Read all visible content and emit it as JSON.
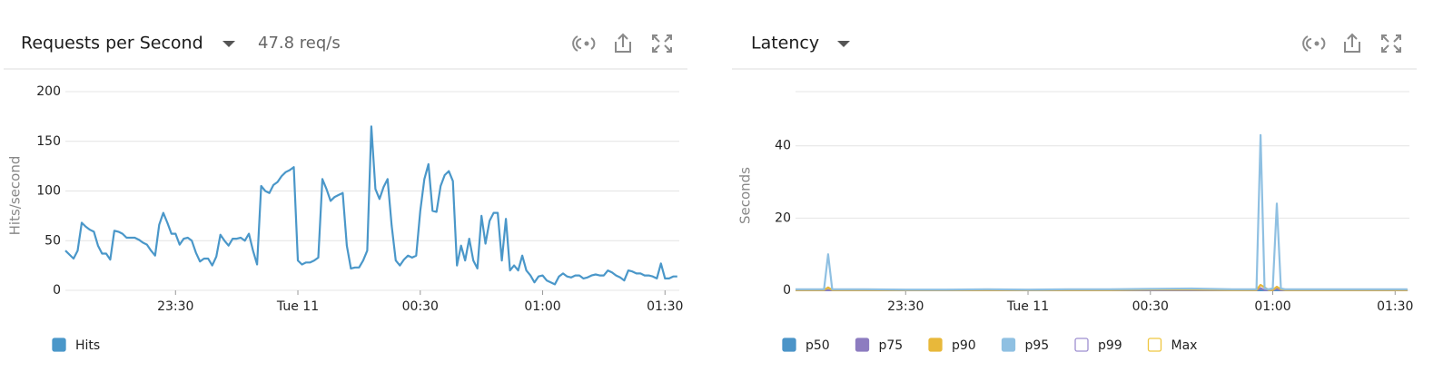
{
  "chart_data": [
    {
      "type": "line",
      "title": "Requests per Second",
      "subtitle": "47.8 req/s",
      "y_label": "Hits/second",
      "x": [
        -57,
        -56,
        -55,
        -54,
        -53,
        -52,
        -51,
        -50,
        -49,
        -48,
        -47,
        -46,
        -45,
        -44,
        -43,
        -42,
        -41,
        -40,
        -39,
        -38,
        -37,
        -36,
        -35,
        -34,
        -33,
        -32,
        -31,
        -30,
        -29,
        -28,
        -27,
        -26,
        -25,
        -24,
        -23,
        -22,
        -21,
        -20,
        -19,
        -18,
        -17,
        -16,
        -15,
        -14,
        -13,
        -12,
        -11,
        -10,
        -9,
        -8,
        -7,
        -6,
        -5,
        -4,
        -3,
        -2,
        -1,
        0,
        1,
        2,
        3,
        4,
        5,
        6,
        7,
        8,
        9,
        10,
        11,
        12,
        13,
        14,
        15,
        16,
        17,
        18,
        19,
        20,
        21,
        22,
        23,
        24,
        25,
        26,
        27,
        28,
        29,
        30,
        31,
        32,
        33,
        34,
        35,
        36,
        37,
        38,
        39,
        40,
        41,
        42,
        43,
        44,
        45,
        46,
        47,
        48,
        49,
        50,
        51,
        52,
        53,
        54,
        55,
        56,
        57,
        58,
        59,
        60,
        61,
        62,
        63,
        64,
        65,
        66,
        67,
        68,
        69,
        70,
        71,
        72,
        73,
        74,
        75,
        76,
        77,
        78,
        79,
        80,
        81,
        82,
        83,
        84,
        85,
        86,
        87,
        88,
        89,
        90,
        91,
        92,
        93
      ],
      "xlim": [
        -57,
        93.5
      ],
      "xticks": [
        {
          "value": -30,
          "label": "23:30"
        },
        {
          "value": 0,
          "label": "Tue 11"
        },
        {
          "value": 30,
          "label": "00:30"
        },
        {
          "value": 60,
          "label": "01:00"
        },
        {
          "value": 90,
          "label": "01:30"
        }
      ],
      "ylim": [
        0,
        200
      ],
      "yticks": [
        0,
        50,
        100,
        150,
        200
      ],
      "grid": true,
      "series": [
        {
          "name": "Hits",
          "color": "#4a97c9",
          "values": [
            40,
            36,
            32,
            40,
            68,
            64,
            61,
            59,
            45,
            37,
            37,
            31,
            60,
            59,
            57,
            53,
            53,
            53,
            51,
            48,
            46,
            40,
            35,
            66,
            78,
            68,
            57,
            57,
            46,
            52,
            53,
            50,
            38,
            29,
            32,
            32,
            25,
            34,
            56,
            50,
            45,
            52,
            52,
            53,
            50,
            57,
            40,
            26,
            105,
            100,
            98,
            106,
            109,
            115,
            119,
            121,
            124,
            30,
            26,
            28,
            28,
            30,
            33,
            112,
            102,
            90,
            94,
            96,
            98,
            45,
            22,
            23,
            23,
            30,
            40,
            165,
            102,
            92,
            104,
            112,
            65,
            30,
            25,
            31,
            35,
            33,
            35,
            80,
            112,
            127,
            80,
            79,
            105,
            116,
            120,
            110,
            25,
            45,
            30,
            52,
            30,
            22,
            75,
            47,
            70,
            78,
            78,
            30,
            72,
            20,
            25,
            20,
            35,
            20,
            15,
            8,
            14,
            15,
            10,
            8,
            6,
            14,
            17,
            14,
            13,
            15,
            15,
            12,
            13,
            15,
            16,
            15,
            15,
            20,
            18,
            15,
            13,
            10,
            20,
            19,
            17,
            17,
            15,
            15,
            14,
            12,
            27,
            12,
            12,
            14,
            14
          ]
        }
      ]
    },
    {
      "type": "line",
      "title": "Latency",
      "y_label": "Seconds",
      "x": [
        -57,
        -50,
        -49,
        -48,
        -40,
        -30,
        -20,
        -10,
        0,
        10,
        20,
        30,
        40,
        50,
        55,
        56,
        57,
        58,
        59,
        60,
        61,
        62,
        63,
        70,
        80,
        93
      ],
      "xlim": [
        -57,
        93.5
      ],
      "xticks": [
        {
          "value": -30,
          "label": "23:30"
        },
        {
          "value": 0,
          "label": "Tue 11"
        },
        {
          "value": 30,
          "label": "00:30"
        },
        {
          "value": 60,
          "label": "01:00"
        },
        {
          "value": 90,
          "label": "01:30"
        }
      ],
      "ylim": [
        0,
        55
      ],
      "yticks": [
        0,
        20,
        40
      ],
      "grid": true,
      "series": [
        {
          "name": "p50",
          "color": "#4b94c8",
          "values": [
            0.03,
            0.03,
            0.03,
            0.03,
            0.03,
            0.03,
            0.03,
            0.03,
            0.03,
            0.03,
            0.03,
            0.03,
            0.03,
            0.03,
            0.03,
            0.03,
            0.03,
            0.03,
            0.03,
            0.03,
            0.03,
            0.03,
            0.03,
            0.03,
            0.03,
            0.03
          ]
        },
        {
          "name": "p75",
          "color": "#8d7cc0",
          "values": [
            0.05,
            0.05,
            0.05,
            0.05,
            0.05,
            0.05,
            0.05,
            0.05,
            0.05,
            0.05,
            0.05,
            0.05,
            0.05,
            0.05,
            0.05,
            0.05,
            0.6,
            0.05,
            0.05,
            0.05,
            0.4,
            0.05,
            0.05,
            0.05,
            0.05,
            0.05
          ]
        },
        {
          "name": "p90",
          "color": "#e8b83a",
          "values": [
            0.1,
            0.1,
            0.8,
            0.1,
            0.1,
            0.1,
            0.1,
            0.1,
            0.1,
            0.1,
            0.1,
            0.2,
            0.2,
            0.1,
            0.1,
            0.1,
            1.5,
            0.8,
            0.1,
            0.1,
            1,
            0.3,
            0.1,
            0.1,
            0.1,
            0.1
          ]
        },
        {
          "name": "p95",
          "color": "#8fc0e2",
          "values": [
            0.3,
            0.3,
            10,
            0.3,
            0.3,
            0.2,
            0.2,
            0.3,
            0.2,
            0.3,
            0.3,
            0.4,
            0.5,
            0.3,
            0.3,
            0.3,
            43,
            0.5,
            0.3,
            0.5,
            24,
            0.5,
            0.3,
            0.3,
            0.3,
            0.3
          ]
        },
        {
          "name": "p99",
          "color": "#9e8fd0",
          "hidden": true
        },
        {
          "name": "Max",
          "color": "#efc640",
          "hidden": true
        }
      ]
    }
  ]
}
